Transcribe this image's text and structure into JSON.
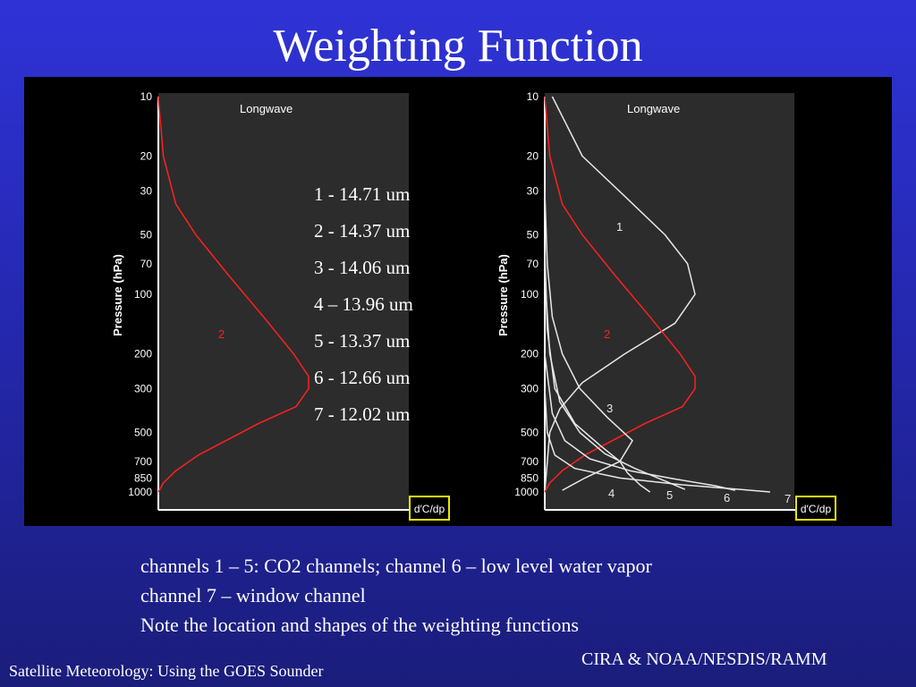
{
  "slide": {
    "title": "Weighting Function",
    "caption": [
      "channels 1 – 5: CO2 channels;  channel 6 – low level water vapor",
      "channel 7 – window channel",
      "Note the location and shapes of the weighting functions"
    ],
    "footer_left": "Satellite Meteorology: Using the GOES Sounder",
    "footer_right": "CIRA & NOAA/NESDIS/RAMM"
  },
  "legend": [
    "1 - 14.71 um",
    "2 - 14.37 um",
    "3 - 14.06 um",
    "4 – 13.96 um",
    "5 - 13.37 um",
    "6 - 12.66 um",
    "7 - 12.02 um"
  ],
  "colors": {
    "slide_bg": "#2a2ec8",
    "figure_bg": "#000000",
    "plot_bg": "#2c2c2c",
    "channel_2": "#ff2020",
    "other_channels": "#e8e8e8",
    "unit_box": "#e8e800"
  },
  "chart_data": [
    {
      "type": "line",
      "title": "Longwave",
      "ylabel": "Pressure (hPa)",
      "xlabel": "",
      "unit_label": "d′C/dp",
      "y_scale": "log",
      "y_inverted": true,
      "yticks": [
        10,
        20,
        30,
        50,
        70,
        100,
        200,
        300,
        500,
        700,
        850,
        1000
      ],
      "series": [
        {
          "name": "2",
          "color": "#ff2020",
          "points": [
            [
              0,
              10
            ],
            [
              0.02,
              20
            ],
            [
              0.07,
              35
            ],
            [
              0.15,
              50
            ],
            [
              0.28,
              80
            ],
            [
              0.42,
              130
            ],
            [
              0.54,
              200
            ],
            [
              0.6,
              260
            ],
            [
              0.6,
              300
            ],
            [
              0.55,
              370
            ],
            [
              0.4,
              450
            ],
            [
              0.27,
              550
            ],
            [
              0.16,
              650
            ],
            [
              0.07,
              780
            ],
            [
              0.02,
              900
            ],
            [
              0,
              1000
            ]
          ]
        }
      ]
    },
    {
      "type": "line",
      "title": "Longwave",
      "ylabel": "Pressure (hPa)",
      "xlabel": "",
      "unit_label": "d′C/dp",
      "y_scale": "log",
      "y_inverted": true,
      "yticks": [
        10,
        20,
        30,
        50,
        70,
        100,
        200,
        300,
        500,
        700,
        850,
        1000
      ],
      "series": [
        {
          "name": "1",
          "color": "#e8e8e8",
          "points": [
            [
              0.03,
              10
            ],
            [
              0.15,
              20
            ],
            [
              0.32,
              32
            ],
            [
              0.48,
              50
            ],
            [
              0.57,
              70
            ],
            [
              0.6,
              100
            ],
            [
              0.52,
              140
            ],
            [
              0.32,
              200
            ],
            [
              0.15,
              280
            ],
            [
              0.06,
              380
            ],
            [
              0.02,
              500
            ],
            [
              0,
              1000
            ]
          ]
        },
        {
          "name": "2",
          "color": "#ff2020",
          "points": [
            [
              0,
              10
            ],
            [
              0.02,
              20
            ],
            [
              0.07,
              35
            ],
            [
              0.15,
              50
            ],
            [
              0.28,
              80
            ],
            [
              0.42,
              130
            ],
            [
              0.54,
              200
            ],
            [
              0.6,
              260
            ],
            [
              0.6,
              300
            ],
            [
              0.55,
              370
            ],
            [
              0.4,
              450
            ],
            [
              0.27,
              550
            ],
            [
              0.16,
              650
            ],
            [
              0.07,
              780
            ],
            [
              0.02,
              900
            ],
            [
              0,
              1000
            ]
          ]
        },
        {
          "name": "3",
          "color": "#e8e8e8",
          "points": [
            [
              0,
              30
            ],
            [
              0.01,
              70
            ],
            [
              0.03,
              130
            ],
            [
              0.07,
              200
            ],
            [
              0.14,
              300
            ],
            [
              0.25,
              420
            ],
            [
              0.35,
              550
            ],
            [
              0.3,
              700
            ],
            [
              0.16,
              850
            ],
            [
              0.07,
              980
            ]
          ]
        },
        {
          "name": "4",
          "color": "#e8e8e8",
          "points": [
            [
              0,
              60
            ],
            [
              0.01,
              150
            ],
            [
              0.04,
              300
            ],
            [
              0.12,
              450
            ],
            [
              0.22,
              580
            ],
            [
              0.3,
              700
            ],
            [
              0.33,
              800
            ],
            [
              0.38,
              920
            ],
            [
              0.42,
              1000
            ]
          ]
        },
        {
          "name": "5",
          "color": "#e8e8e8",
          "points": [
            [
              0,
              80
            ],
            [
              0.02,
              200
            ],
            [
              0.06,
              350
            ],
            [
              0.14,
              500
            ],
            [
              0.24,
              640
            ],
            [
              0.36,
              760
            ],
            [
              0.48,
              880
            ],
            [
              0.56,
              970
            ]
          ]
        },
        {
          "name": "6",
          "color": "#e8e8e8",
          "points": [
            [
              0,
              200
            ],
            [
              0.03,
              400
            ],
            [
              0.08,
              550
            ],
            [
              0.18,
              680
            ],
            [
              0.34,
              780
            ],
            [
              0.52,
              860
            ],
            [
              0.68,
              930
            ],
            [
              0.76,
              980
            ]
          ]
        },
        {
          "name": "7",
          "color": "#e8e8e8",
          "points": [
            [
              0,
              300
            ],
            [
              0.01,
              500
            ],
            [
              0.04,
              650
            ],
            [
              0.12,
              760
            ],
            [
              0.3,
              850
            ],
            [
              0.55,
              920
            ],
            [
              0.78,
              970
            ],
            [
              0.9,
              1000
            ]
          ]
        }
      ]
    }
  ]
}
